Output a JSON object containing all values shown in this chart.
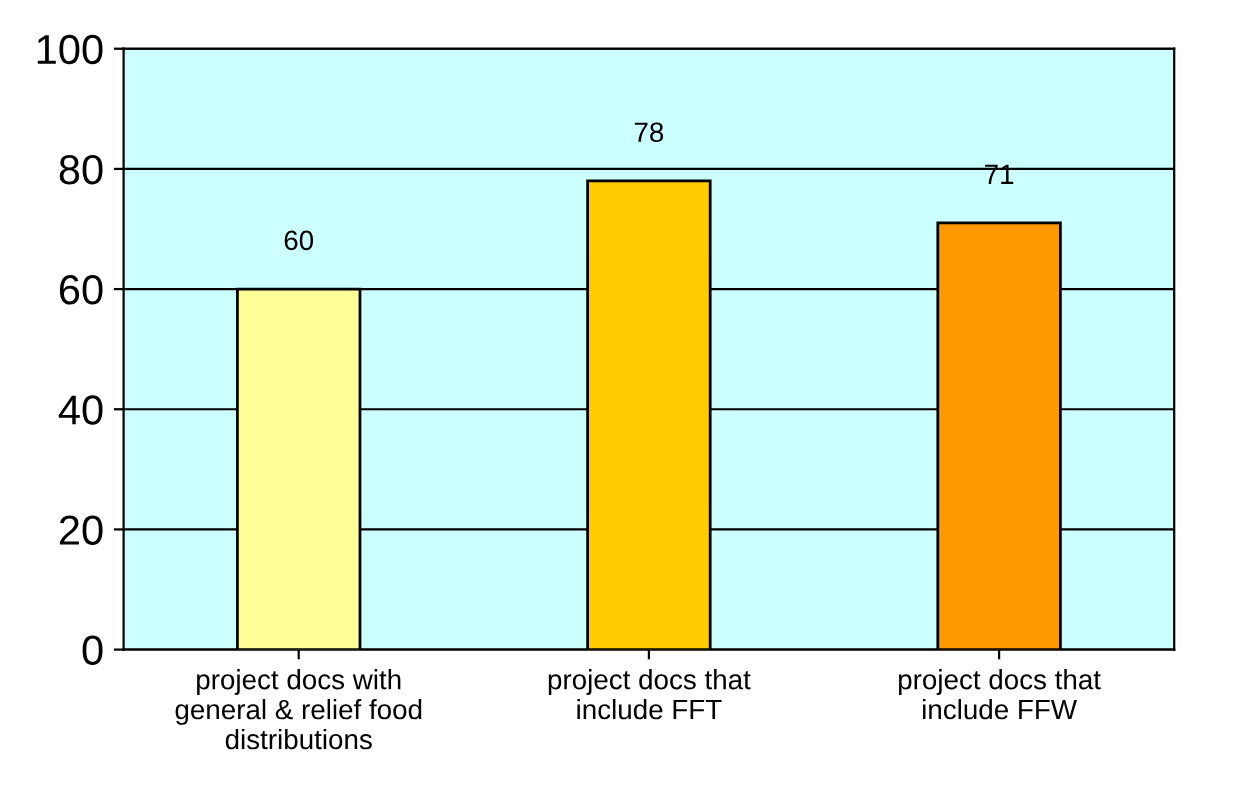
{
  "chart_data": {
    "type": "bar",
    "categories": [
      "project docs with\ngeneral & relief food\ndistributions",
      "project docs that\ninclude FFT",
      "project docs that\ninclude FFW"
    ],
    "values": [
      60,
      78,
      71
    ],
    "colors": [
      "#ffff99",
      "#ffcc00",
      "#ff9900"
    ],
    "ylim": [
      0,
      100
    ],
    "yticks": [
      0,
      20,
      40,
      60,
      80,
      100
    ],
    "grid": "y",
    "data_labels": true
  }
}
